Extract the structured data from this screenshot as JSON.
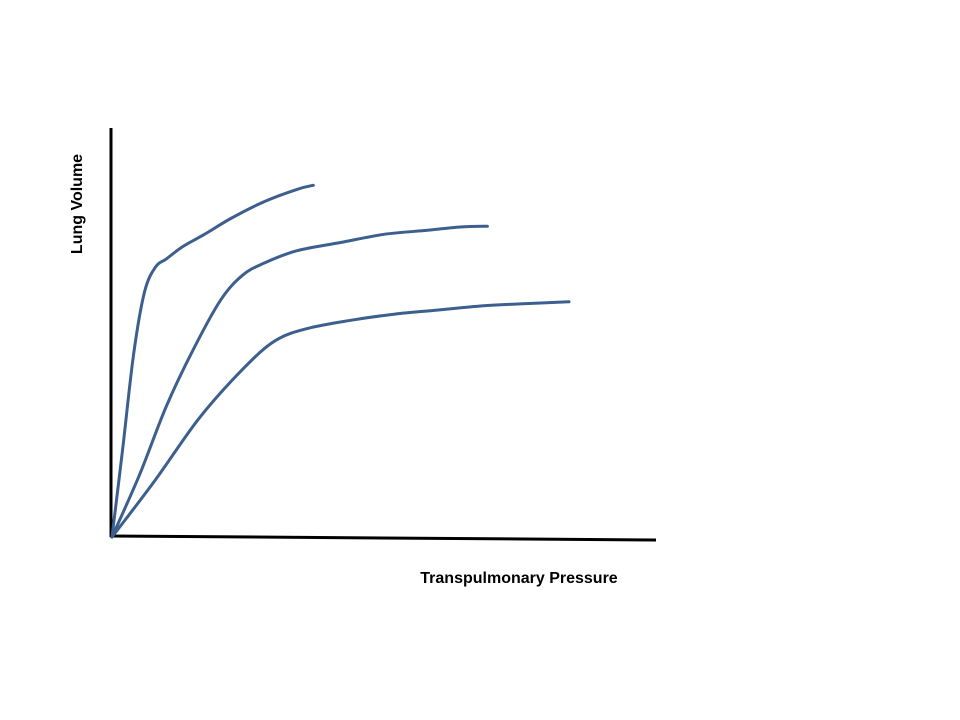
{
  "chart_data": {
    "type": "line",
    "title": "",
    "xlabel": "Transpulmonary Pressure",
    "ylabel": "Lung Volume",
    "xlim": [
      0,
      100
    ],
    "ylim": [
      0,
      100
    ],
    "grid": false,
    "legend": "none",
    "colors": {
      "axis": "#000000",
      "series": "#3d5f8e"
    },
    "series": [
      {
        "x": [
          0,
          2,
          4,
          6,
          8,
          10,
          13,
          17,
          22,
          28,
          34,
          37
        ],
        "y": [
          0,
          22,
          45,
          60,
          66,
          68,
          71,
          74,
          78,
          82,
          85,
          86
        ]
      },
      {
        "x": [
          0,
          5,
          10,
          15,
          20,
          24,
          28,
          34,
          42,
          50,
          58,
          64,
          69
        ],
        "y": [
          0,
          15,
          32,
          46,
          58,
          64,
          67,
          70,
          72,
          74,
          75,
          75.8,
          76
        ]
      },
      {
        "x": [
          0,
          8,
          16,
          24,
          30,
          36,
          44,
          52,
          60,
          68,
          75,
          84
        ],
        "y": [
          0,
          14,
          29,
          41,
          48,
          51,
          53,
          54.5,
          55.5,
          56.5,
          57,
          57.5
        ]
      }
    ]
  }
}
